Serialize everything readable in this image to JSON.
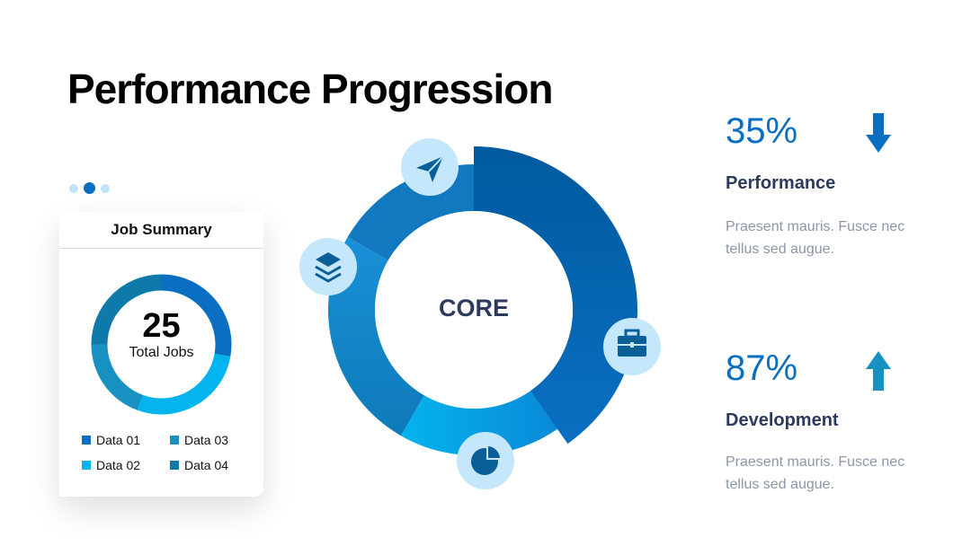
{
  "title": "Performance Progression",
  "colors": {
    "primary": "#0a6fc2",
    "dark_blue": "#0060ab",
    "light_blue": "#03b4ee",
    "teal": "#1691c1",
    "icon_bg": "#c5e7fb",
    "heading": "#2d3a5e",
    "muted": "#8c96a8"
  },
  "job_summary": {
    "title": "Job Summary",
    "total": "25",
    "total_label": "Total Jobs",
    "legend": [
      {
        "label": "Data 01",
        "color": "#0a6fc2"
      },
      {
        "label": "Data 02",
        "color": "#03b4ee"
      },
      {
        "label": "Data 03",
        "color": "#1691c1"
      },
      {
        "label": "Data 04",
        "color": "#0e7aaa"
      }
    ]
  },
  "core": {
    "label": "CORE",
    "icons": [
      "paper-plane-icon",
      "layers-icon",
      "briefcase-icon",
      "pie-chart-icon"
    ]
  },
  "stats": [
    {
      "value": "35%",
      "heading": "Performance",
      "description": "Praesent mauris. Fusce nec tellus sed augue.",
      "trend": "down"
    },
    {
      "value": "87%",
      "heading": "Development",
      "description": "Praesent mauris. Fusce nec tellus sed augue.",
      "trend": "up"
    }
  ]
}
